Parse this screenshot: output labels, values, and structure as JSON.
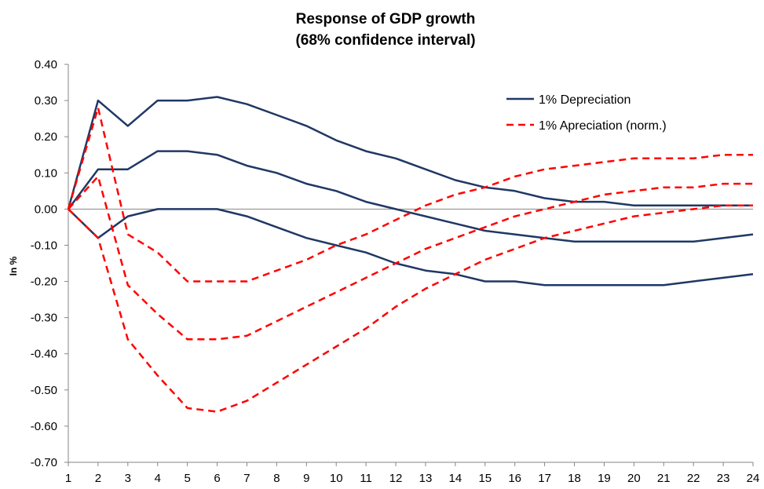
{
  "chart_data": {
    "type": "line",
    "title": "Response of GDP growth",
    "subtitle": "(68% confidence interval)",
    "xlabel": "",
    "ylabel": "In %",
    "x": [
      1,
      2,
      3,
      4,
      5,
      6,
      7,
      8,
      9,
      10,
      11,
      12,
      13,
      14,
      15,
      16,
      17,
      18,
      19,
      20,
      21,
      22,
      23,
      24
    ],
    "ylim": [
      -0.7,
      0.4
    ],
    "yticks": [
      "0.40",
      "0.30",
      "0.20",
      "0.10",
      "0.00",
      "-0.10",
      "-0.20",
      "-0.30",
      "-0.40",
      "-0.50",
      "-0.60",
      "-0.70"
    ],
    "grid": false,
    "legend_position": "top-right",
    "legend": [
      {
        "label": "1% Depreciation",
        "color": "#1f3864",
        "style": "solid"
      },
      {
        "label": "1% Apreciation (norm.)",
        "color": "#ff0000",
        "style": "dashed"
      }
    ],
    "series": [
      {
        "group": "1% Depreciation",
        "band": "upper",
        "color": "#1f3864",
        "dashed": false,
        "values": [
          0.0,
          0.3,
          0.23,
          0.3,
          0.3,
          0.31,
          0.29,
          0.26,
          0.23,
          0.19,
          0.16,
          0.14,
          0.11,
          0.08,
          0.06,
          0.05,
          0.03,
          0.02,
          0.02,
          0.01,
          0.01,
          0.01,
          0.01,
          0.01
        ]
      },
      {
        "group": "1% Depreciation",
        "band": "mid",
        "color": "#1f3864",
        "dashed": false,
        "values": [
          0.0,
          0.11,
          0.11,
          0.16,
          0.16,
          0.15,
          0.12,
          0.1,
          0.07,
          0.05,
          0.02,
          0.0,
          -0.02,
          -0.04,
          -0.06,
          -0.07,
          -0.08,
          -0.09,
          -0.09,
          -0.09,
          -0.09,
          -0.09,
          -0.08,
          -0.07
        ]
      },
      {
        "group": "1% Depreciation",
        "band": "lower",
        "color": "#1f3864",
        "dashed": false,
        "values": [
          0.0,
          -0.08,
          -0.02,
          0.0,
          0.0,
          0.0,
          -0.02,
          -0.05,
          -0.08,
          -0.1,
          -0.12,
          -0.15,
          -0.17,
          -0.18,
          -0.2,
          -0.2,
          -0.21,
          -0.21,
          -0.21,
          -0.21,
          -0.21,
          -0.2,
          -0.19,
          -0.18
        ]
      },
      {
        "group": "1% Apreciation (norm.)",
        "band": "upper",
        "color": "#ff0000",
        "dashed": true,
        "values": [
          0.0,
          0.28,
          -0.07,
          -0.12,
          -0.2,
          -0.2,
          -0.2,
          -0.17,
          -0.14,
          -0.1,
          -0.07,
          -0.03,
          0.01,
          0.04,
          0.06,
          0.09,
          0.11,
          0.12,
          0.13,
          0.14,
          0.14,
          0.14,
          0.15,
          0.15
        ]
      },
      {
        "group": "1% Apreciation (norm.)",
        "band": "mid",
        "color": "#ff0000",
        "dashed": true,
        "values": [
          0.0,
          0.09,
          -0.21,
          -0.29,
          -0.36,
          -0.36,
          -0.35,
          -0.31,
          -0.27,
          -0.23,
          -0.19,
          -0.15,
          -0.11,
          -0.08,
          -0.05,
          -0.02,
          0.0,
          0.02,
          0.04,
          0.05,
          0.06,
          0.06,
          0.07,
          0.07
        ]
      },
      {
        "group": "1% Apreciation (norm.)",
        "band": "lower",
        "color": "#ff0000",
        "dashed": true,
        "values": [
          0.0,
          -0.08,
          -0.36,
          -0.46,
          -0.55,
          -0.56,
          -0.53,
          -0.48,
          -0.43,
          -0.38,
          -0.33,
          -0.27,
          -0.22,
          -0.18,
          -0.14,
          -0.11,
          -0.08,
          -0.06,
          -0.04,
          -0.02,
          -0.01,
          0.0,
          0.01,
          0.01
        ]
      }
    ]
  }
}
